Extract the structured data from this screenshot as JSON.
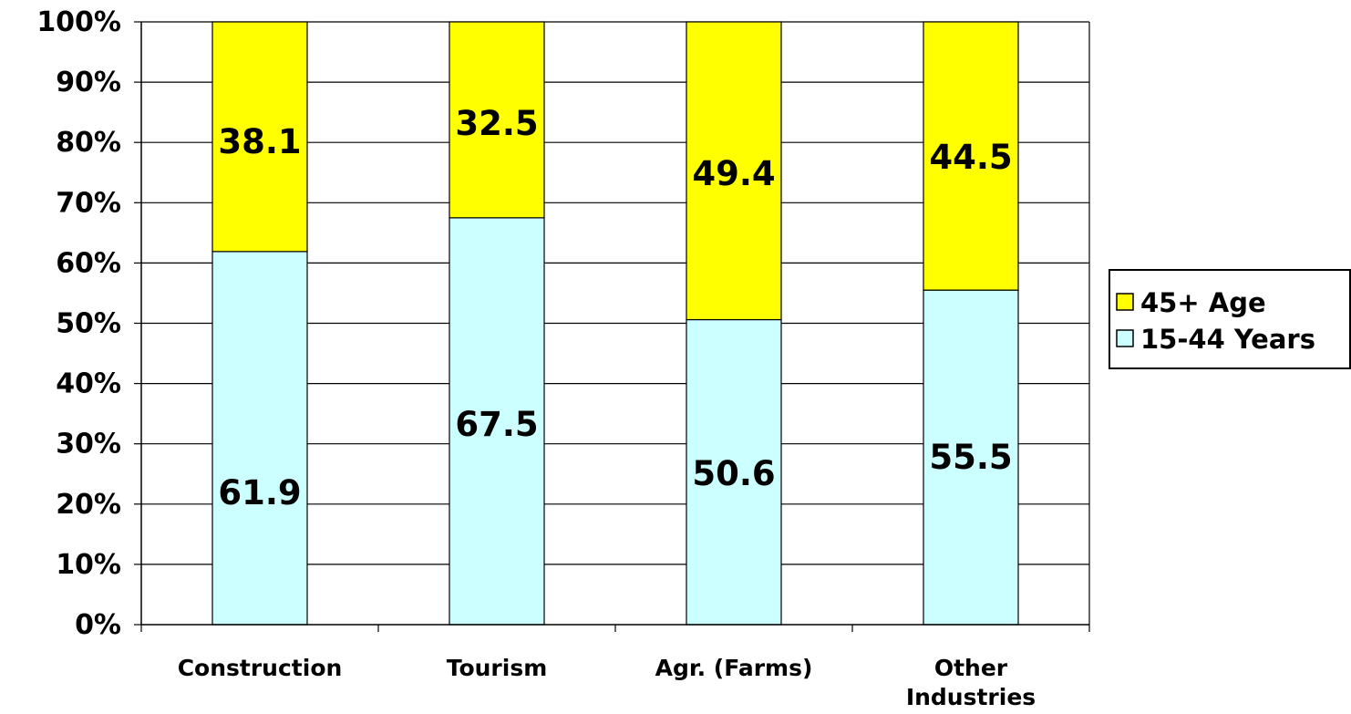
{
  "chart_data": {
    "type": "bar",
    "stacked": true,
    "percent_stacked": true,
    "categories": [
      "Construction",
      "Tourism",
      "Agr. (Farms)",
      "Other Industries"
    ],
    "category_label_lines": [
      [
        "Construction"
      ],
      [
        "Tourism"
      ],
      [
        "Agr. (Farms)"
      ],
      [
        "Other",
        "Industries"
      ]
    ],
    "series": [
      {
        "name": "15-44 Years",
        "values": [
          61.9,
          67.5,
          50.6,
          55.5
        ],
        "labels": [
          "61.9",
          "67.5",
          "50.6",
          "55.5"
        ],
        "color": "#ccffff"
      },
      {
        "name": "45+ Age",
        "values": [
          38.1,
          32.5,
          49.4,
          44.5
        ],
        "labels": [
          "38.1",
          "32.5",
          "49.4",
          "44.5"
        ],
        "color": "#ffff00"
      }
    ],
    "yticks": [
      "0%",
      "10%",
      "20%",
      "30%",
      "40%",
      "50%",
      "60%",
      "70%",
      "80%",
      "90%",
      "100%"
    ],
    "ylim": [
      0,
      100
    ],
    "grid": true,
    "legend": {
      "position": "right",
      "entries": [
        {
          "label": "45+ Age",
          "color": "#ffff00"
        },
        {
          "label": "15-44 Years",
          "color": "#ccffff"
        }
      ]
    },
    "title": "",
    "xlabel": "",
    "ylabel": ""
  }
}
